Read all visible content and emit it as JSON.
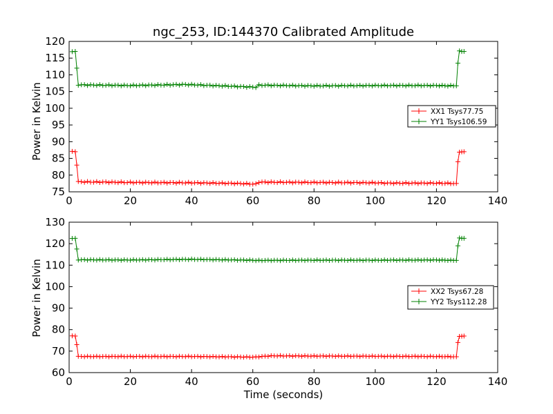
{
  "title": "ngc_253, ID:144370 Calibrated Amplitude",
  "chart_data": [
    {
      "type": "line",
      "title": "ngc_253, ID:144370 Calibrated Amplitude",
      "xlabel": "",
      "ylabel": "Power in Kelvin",
      "xlim": [
        0,
        140
      ],
      "ylim": [
        75,
        120
      ],
      "xticks": [
        "0",
        "20",
        "40",
        "60",
        "80",
        "100",
        "120",
        "140"
      ],
      "yticks": [
        "75",
        "80",
        "85",
        "90",
        "95",
        "100",
        "105",
        "110",
        "115",
        "120"
      ],
      "legend_position": "center-right",
      "series": [
        {
          "name": "XX1 Tsys77.75",
          "color": "#ff0000",
          "points": [
            [
              1,
              87
            ],
            [
              2,
              87
            ],
            [
              2.5,
              83
            ],
            [
              3,
              78
            ],
            [
              20,
              77.8
            ],
            [
              40,
              77.7
            ],
            [
              55,
              77.5
            ],
            [
              61,
              77.3
            ],
            [
              62,
              77.9
            ],
            [
              80,
              77.8
            ],
            [
              100,
              77.7
            ],
            [
              104,
              77.6
            ],
            [
              120,
              77.6
            ],
            [
              126.5,
              77.5
            ],
            [
              127,
              84
            ],
            [
              127.5,
              87
            ],
            [
              129,
              87
            ]
          ]
        },
        {
          "name": "YY1 Tsys106.59",
          "color": "#008000",
          "points": [
            [
              1,
              117
            ],
            [
              2,
              117
            ],
            [
              2.5,
              112
            ],
            [
              3,
              107
            ],
            [
              20,
              106.8
            ],
            [
              38,
              107.1
            ],
            [
              50,
              106.7
            ],
            [
              61,
              106.3
            ],
            [
              62,
              106.9
            ],
            [
              80,
              106.7
            ],
            [
              100,
              106.8
            ],
            [
              120,
              106.8
            ],
            [
              126.5,
              106.7
            ],
            [
              127,
              113.5
            ],
            [
              127.5,
              117
            ],
            [
              129,
              117
            ]
          ]
        }
      ]
    },
    {
      "type": "line",
      "title": "",
      "xlabel": "Time (seconds)",
      "ylabel": "Power in Kelvin",
      "xlim": [
        0,
        140
      ],
      "ylim": [
        60,
        130
      ],
      "xticks": [
        "0",
        "20",
        "40",
        "60",
        "80",
        "100",
        "120",
        "140"
      ],
      "yticks": [
        "60",
        "70",
        "80",
        "90",
        "100",
        "110",
        "120",
        "130"
      ],
      "legend_position": "center-right",
      "series": [
        {
          "name": "XX2 Tsys67.28",
          "color": "#ff0000",
          "points": [
            [
              1,
              77
            ],
            [
              2,
              77
            ],
            [
              2.5,
              73
            ],
            [
              3,
              67.5
            ],
            [
              20,
              67.5
            ],
            [
              40,
              67.5
            ],
            [
              55,
              67.3
            ],
            [
              61,
              67.2
            ],
            [
              62,
              67.4
            ],
            [
              66,
              67.8
            ],
            [
              80,
              67.7
            ],
            [
              100,
              67.6
            ],
            [
              120,
              67.5
            ],
            [
              126.5,
              67.4
            ],
            [
              127,
              74
            ],
            [
              127.5,
              77
            ],
            [
              129,
              77
            ]
          ]
        },
        {
          "name": "YY2 Tsys112.28",
          "color": "#008000",
          "points": [
            [
              1,
              122.5
            ],
            [
              2,
              122.5
            ],
            [
              2.5,
              117.5
            ],
            [
              3,
              112.5
            ],
            [
              20,
              112.4
            ],
            [
              40,
              112.7
            ],
            [
              60,
              112.3
            ],
            [
              61,
              112.2
            ],
            [
              80,
              112.3
            ],
            [
              100,
              112.3
            ],
            [
              120,
              112.4
            ],
            [
              126.5,
              112.2
            ],
            [
              127,
              119
            ],
            [
              127.5,
              122.5
            ],
            [
              129,
              122.5
            ]
          ]
        }
      ]
    }
  ]
}
